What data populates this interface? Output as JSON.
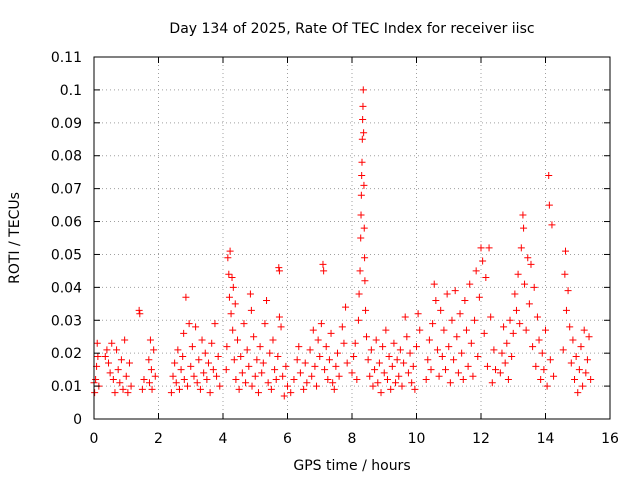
{
  "chart_data": {
    "type": "scatter",
    "title": "Day 134 of 2025, Rate Of TEC Index for receiver iisc",
    "xlabel": "GPS time / hours",
    "ylabel": "ROTI / TECUs",
    "xlim": [
      0,
      16
    ],
    "ylim": [
      0,
      0.11
    ],
    "xticks": [
      "0",
      "2",
      "4",
      "6",
      "8",
      "10",
      "12",
      "14",
      "16"
    ],
    "yticks": [
      "0",
      "0.01",
      "0.02",
      "0.03",
      "0.04",
      "0.05",
      "0.06",
      "0.07",
      "0.08",
      "0.09",
      "0.1",
      "0.11"
    ],
    "grid": true,
    "marker": "+",
    "color": "#ff0000",
    "series": [
      {
        "name": "ROTI",
        "points": [
          [
            0.0,
            0.011
          ],
          [
            0.02,
            0.008
          ],
          [
            0.05,
            0.012
          ],
          [
            0.08,
            0.016
          ],
          [
            0.1,
            0.023
          ],
          [
            0.12,
            0.019
          ],
          [
            0.15,
            0.01
          ],
          [
            0.35,
            0.019
          ],
          [
            0.4,
            0.021
          ],
          [
            0.45,
            0.017
          ],
          [
            0.5,
            0.014
          ],
          [
            0.55,
            0.023
          ],
          [
            0.6,
            0.012
          ],
          [
            0.65,
            0.008
          ],
          [
            0.7,
            0.021
          ],
          [
            0.75,
            0.015
          ],
          [
            0.8,
            0.011
          ],
          [
            0.85,
            0.018
          ],
          [
            0.9,
            0.009
          ],
          [
            0.95,
            0.024
          ],
          [
            1.0,
            0.013
          ],
          [
            1.05,
            0.008
          ],
          [
            1.1,
            0.017
          ],
          [
            1.15,
            0.01
          ],
          [
            1.4,
            0.033
          ],
          [
            1.42,
            0.032
          ],
          [
            1.5,
            0.009
          ],
          [
            1.55,
            0.012
          ],
          [
            1.7,
            0.018
          ],
          [
            1.72,
            0.011
          ],
          [
            1.75,
            0.024
          ],
          [
            1.78,
            0.015
          ],
          [
            1.8,
            0.009
          ],
          [
            1.85,
            0.021
          ],
          [
            1.9,
            0.013
          ],
          [
            2.4,
            0.008
          ],
          [
            2.45,
            0.013
          ],
          [
            2.5,
            0.017
          ],
          [
            2.55,
            0.011
          ],
          [
            2.6,
            0.021
          ],
          [
            2.65,
            0.009
          ],
          [
            2.7,
            0.015
          ],
          [
            2.75,
            0.019
          ],
          [
            2.78,
            0.026
          ],
          [
            2.8,
            0.012
          ],
          [
            2.85,
            0.037
          ],
          [
            2.9,
            0.01
          ],
          [
            2.95,
            0.029
          ],
          [
            3.0,
            0.016
          ],
          [
            3.05,
            0.022
          ],
          [
            3.1,
            0.013
          ],
          [
            3.15,
            0.028
          ],
          [
            3.2,
            0.011
          ],
          [
            3.25,
            0.018
          ],
          [
            3.3,
            0.009
          ],
          [
            3.35,
            0.024
          ],
          [
            3.4,
            0.014
          ],
          [
            3.45,
            0.02
          ],
          [
            3.5,
            0.012
          ],
          [
            3.55,
            0.017
          ],
          [
            3.6,
            0.008
          ],
          [
            3.65,
            0.023
          ],
          [
            3.7,
            0.015
          ],
          [
            3.75,
            0.029
          ],
          [
            3.8,
            0.013
          ],
          [
            3.85,
            0.019
          ],
          [
            3.9,
            0.01
          ],
          [
            4.1,
            0.015
          ],
          [
            4.12,
            0.022
          ],
          [
            4.15,
            0.049
          ],
          [
            4.18,
            0.044
          ],
          [
            4.2,
            0.037
          ],
          [
            4.22,
            0.051
          ],
          [
            4.25,
            0.032
          ],
          [
            4.28,
            0.043
          ],
          [
            4.3,
            0.027
          ],
          [
            4.32,
            0.04
          ],
          [
            4.35,
            0.018
          ],
          [
            4.38,
            0.035
          ],
          [
            4.4,
            0.012
          ],
          [
            4.45,
            0.024
          ],
          [
            4.5,
            0.009
          ],
          [
            4.55,
            0.019
          ],
          [
            4.6,
            0.014
          ],
          [
            4.65,
            0.029
          ],
          [
            4.7,
            0.011
          ],
          [
            4.75,
            0.021
          ],
          [
            4.8,
            0.016
          ],
          [
            4.85,
            0.038
          ],
          [
            4.88,
            0.033
          ],
          [
            4.9,
            0.01
          ],
          [
            4.95,
            0.025
          ],
          [
            5.0,
            0.013
          ],
          [
            5.05,
            0.018
          ],
          [
            5.1,
            0.008
          ],
          [
            5.15,
            0.022
          ],
          [
            5.2,
            0.014
          ],
          [
            5.25,
            0.017
          ],
          [
            5.3,
            0.029
          ],
          [
            5.35,
            0.036
          ],
          [
            5.4,
            0.011
          ],
          [
            5.45,
            0.02
          ],
          [
            5.5,
            0.009
          ],
          [
            5.55,
            0.024
          ],
          [
            5.6,
            0.015
          ],
          [
            5.65,
            0.012
          ],
          [
            5.7,
            0.019
          ],
          [
            5.75,
            0.031
          ],
          [
            5.8,
            0.028
          ],
          [
            5.85,
            0.013
          ],
          [
            5.9,
            0.007
          ],
          [
            5.95,
            0.016
          ],
          [
            6.0,
            0.01
          ],
          [
            5.73,
            0.046
          ],
          [
            5.75,
            0.045
          ],
          [
            6.1,
            0.008
          ],
          [
            6.2,
            0.012
          ],
          [
            6.3,
            0.018
          ],
          [
            6.35,
            0.022
          ],
          [
            6.4,
            0.014
          ],
          [
            6.5,
            0.009
          ],
          [
            6.55,
            0.017
          ],
          [
            6.6,
            0.011
          ],
          [
            6.7,
            0.021
          ],
          [
            6.75,
            0.013
          ],
          [
            6.8,
            0.027
          ],
          [
            6.85,
            0.016
          ],
          [
            6.9,
            0.01
          ],
          [
            6.95,
            0.024
          ],
          [
            7.0,
            0.019
          ],
          [
            7.05,
            0.029
          ],
          [
            7.1,
            0.047
          ],
          [
            7.12,
            0.045
          ],
          [
            7.15,
            0.015
          ],
          [
            7.2,
            0.022
          ],
          [
            7.25,
            0.012
          ],
          [
            7.3,
            0.018
          ],
          [
            7.35,
            0.026
          ],
          [
            7.4,
            0.011
          ],
          [
            7.45,
            0.009
          ],
          [
            7.5,
            0.016
          ],
          [
            7.55,
            0.02
          ],
          [
            7.6,
            0.013
          ],
          [
            7.7,
            0.028
          ],
          [
            7.75,
            0.023
          ],
          [
            7.8,
            0.034
          ],
          [
            7.85,
            0.017
          ],
          [
            8.0,
            0.014
          ],
          [
            8.05,
            0.019
          ],
          [
            8.1,
            0.023
          ],
          [
            8.15,
            0.012
          ],
          [
            8.2,
            0.03
          ],
          [
            8.22,
            0.038
          ],
          [
            8.25,
            0.045
          ],
          [
            8.27,
            0.055
          ],
          [
            8.28,
            0.062
          ],
          [
            8.29,
            0.068
          ],
          [
            8.3,
            0.074
          ],
          [
            8.31,
            0.078
          ],
          [
            8.32,
            0.085
          ],
          [
            8.33,
            0.091
          ],
          [
            8.34,
            0.095
          ],
          [
            8.35,
            0.1
          ],
          [
            8.36,
            0.087
          ],
          [
            8.37,
            0.071
          ],
          [
            8.38,
            0.058
          ],
          [
            8.39,
            0.049
          ],
          [
            8.4,
            0.042
          ],
          [
            8.42,
            0.033
          ],
          [
            8.45,
            0.025
          ],
          [
            8.5,
            0.018
          ],
          [
            8.55,
            0.013
          ],
          [
            8.6,
            0.021
          ],
          [
            8.65,
            0.01
          ],
          [
            8.7,
            0.015
          ],
          [
            8.75,
            0.024
          ],
          [
            8.8,
            0.011
          ],
          [
            8.85,
            0.017
          ],
          [
            8.9,
            0.008
          ],
          [
            8.95,
            0.022
          ],
          [
            9.0,
            0.014
          ],
          [
            9.05,
            0.027
          ],
          [
            9.1,
            0.012
          ],
          [
            9.15,
            0.019
          ],
          [
            9.2,
            0.009
          ],
          [
            9.25,
            0.016
          ],
          [
            9.3,
            0.023
          ],
          [
            9.35,
            0.011
          ],
          [
            9.4,
            0.018
          ],
          [
            9.45,
            0.013
          ],
          [
            9.5,
            0.021
          ],
          [
            9.55,
            0.01
          ],
          [
            9.6,
            0.017
          ],
          [
            9.65,
            0.031
          ],
          [
            9.7,
            0.025
          ],
          [
            9.75,
            0.014
          ],
          [
            9.8,
            0.02
          ],
          [
            9.85,
            0.011
          ],
          [
            9.9,
            0.016
          ],
          [
            9.95,
            0.009
          ],
          [
            10.0,
            0.022
          ],
          [
            10.05,
            0.032
          ],
          [
            10.1,
            0.027
          ],
          [
            10.3,
            0.012
          ],
          [
            10.35,
            0.018
          ],
          [
            10.4,
            0.024
          ],
          [
            10.45,
            0.015
          ],
          [
            10.5,
            0.029
          ],
          [
            10.55,
            0.041
          ],
          [
            10.6,
            0.036
          ],
          [
            10.65,
            0.021
          ],
          [
            10.7,
            0.013
          ],
          [
            10.75,
            0.033
          ],
          [
            10.8,
            0.019
          ],
          [
            10.85,
            0.027
          ],
          [
            10.9,
            0.015
          ],
          [
            10.95,
            0.038
          ],
          [
            11.0,
            0.022
          ],
          [
            11.05,
            0.011
          ],
          [
            11.1,
            0.03
          ],
          [
            11.15,
            0.018
          ],
          [
            11.2,
            0.039
          ],
          [
            11.25,
            0.025
          ],
          [
            11.3,
            0.014
          ],
          [
            11.35,
            0.032
          ],
          [
            11.4,
            0.02
          ],
          [
            11.45,
            0.012
          ],
          [
            11.5,
            0.036
          ],
          [
            11.55,
            0.027
          ],
          [
            11.6,
            0.016
          ],
          [
            11.65,
            0.041
          ],
          [
            11.7,
            0.023
          ],
          [
            11.75,
            0.013
          ],
          [
            11.8,
            0.03
          ],
          [
            11.85,
            0.045
          ],
          [
            11.9,
            0.019
          ],
          [
            11.95,
            0.037
          ],
          [
            12.0,
            0.052
          ],
          [
            12.05,
            0.048
          ],
          [
            12.1,
            0.026
          ],
          [
            12.15,
            0.043
          ],
          [
            12.2,
            0.016
          ],
          [
            12.25,
            0.052
          ],
          [
            12.3,
            0.031
          ],
          [
            12.35,
            0.011
          ],
          [
            12.4,
            0.021
          ],
          [
            12.45,
            0.015
          ],
          [
            12.6,
            0.014
          ],
          [
            12.65,
            0.02
          ],
          [
            12.7,
            0.028
          ],
          [
            12.75,
            0.017
          ],
          [
            12.8,
            0.023
          ],
          [
            12.85,
            0.012
          ],
          [
            12.9,
            0.03
          ],
          [
            12.95,
            0.019
          ],
          [
            13.0,
            0.026
          ],
          [
            13.05,
            0.038
          ],
          [
            13.1,
            0.033
          ],
          [
            13.15,
            0.044
          ],
          [
            13.2,
            0.029
          ],
          [
            13.25,
            0.052
          ],
          [
            13.3,
            0.062
          ],
          [
            13.32,
            0.058
          ],
          [
            13.35,
            0.041
          ],
          [
            13.4,
            0.027
          ],
          [
            13.45,
            0.049
          ],
          [
            13.5,
            0.035
          ],
          [
            13.55,
            0.047
          ],
          [
            13.6,
            0.022
          ],
          [
            13.65,
            0.04
          ],
          [
            13.7,
            0.016
          ],
          [
            13.75,
            0.031
          ],
          [
            13.8,
            0.024
          ],
          [
            13.85,
            0.012
          ],
          [
            13.9,
            0.02
          ],
          [
            13.95,
            0.015
          ],
          [
            14.0,
            0.027
          ],
          [
            14.05,
            0.01
          ],
          [
            14.1,
            0.074
          ],
          [
            14.12,
            0.065
          ],
          [
            14.15,
            0.018
          ],
          [
            14.2,
            0.059
          ],
          [
            14.25,
            0.013
          ],
          [
            14.55,
            0.021
          ],
          [
            14.6,
            0.044
          ],
          [
            14.62,
            0.051
          ],
          [
            14.65,
            0.033
          ],
          [
            14.7,
            0.039
          ],
          [
            14.75,
            0.028
          ],
          [
            14.8,
            0.017
          ],
          [
            14.85,
            0.024
          ],
          [
            14.9,
            0.012
          ],
          [
            14.95,
            0.019
          ],
          [
            15.0,
            0.008
          ],
          [
            15.05,
            0.015
          ],
          [
            15.1,
            0.022
          ],
          [
            15.15,
            0.01
          ],
          [
            15.2,
            0.027
          ],
          [
            15.25,
            0.014
          ],
          [
            15.3,
            0.018
          ],
          [
            15.35,
            0.025
          ],
          [
            15.4,
            0.012
          ]
        ]
      }
    ]
  }
}
